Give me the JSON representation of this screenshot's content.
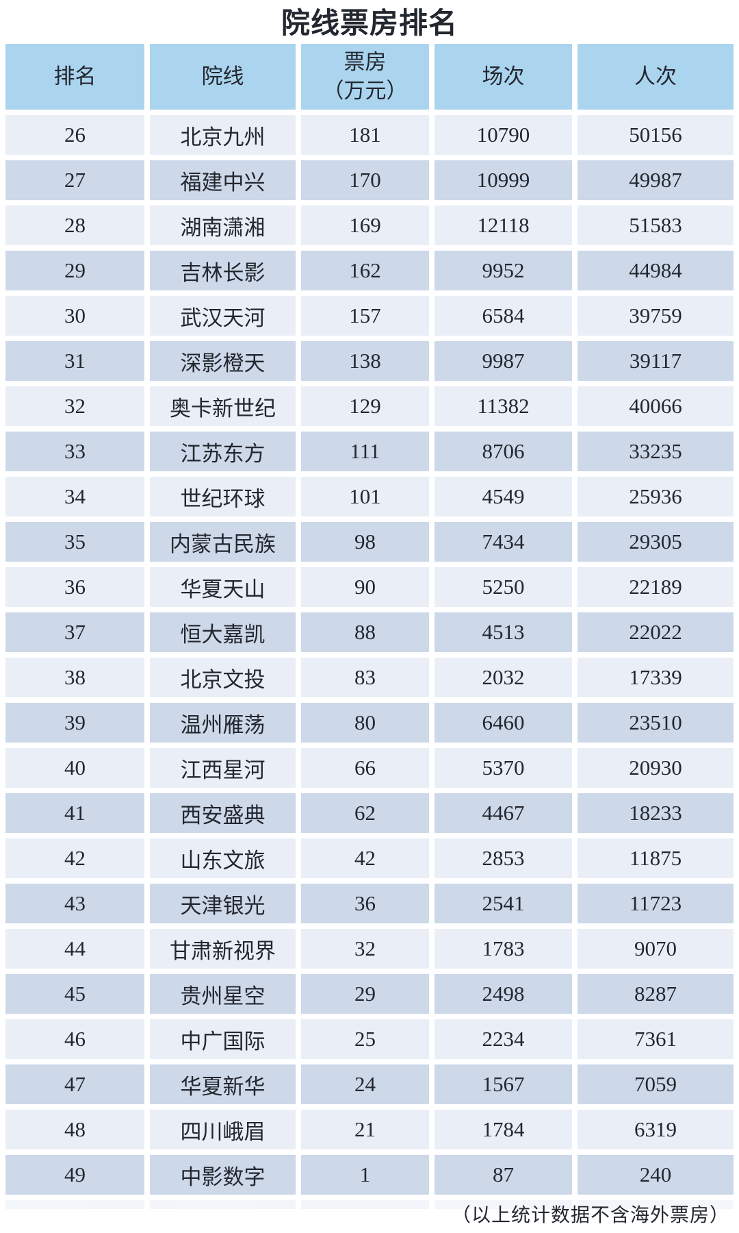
{
  "title": "院线票房排名",
  "chart_data": {
    "type": "table",
    "title": "院线票房排名",
    "columns": [
      "排名",
      "院线",
      "票房（万元）",
      "场次",
      "人次"
    ],
    "rows": [
      [
        26,
        "北京九州",
        181,
        10790,
        50156
      ],
      [
        27,
        "福建中兴",
        170,
        10999,
        49987
      ],
      [
        28,
        "湖南潇湘",
        169,
        12118,
        51583
      ],
      [
        29,
        "吉林长影",
        162,
        9952,
        44984
      ],
      [
        30,
        "武汉天河",
        157,
        6584,
        39759
      ],
      [
        31,
        "深影橙天",
        138,
        9987,
        39117
      ],
      [
        32,
        "奥卡新世纪",
        129,
        11382,
        40066
      ],
      [
        33,
        "江苏东方",
        111,
        8706,
        33235
      ],
      [
        34,
        "世纪环球",
        101,
        4549,
        25936
      ],
      [
        35,
        "内蒙古民族",
        98,
        7434,
        29305
      ],
      [
        36,
        "华夏天山",
        90,
        5250,
        22189
      ],
      [
        37,
        "恒大嘉凯",
        88,
        4513,
        22022
      ],
      [
        38,
        "北京文投",
        83,
        2032,
        17339
      ],
      [
        39,
        "温州雁荡",
        80,
        6460,
        23510
      ],
      [
        40,
        "江西星河",
        66,
        5370,
        20930
      ],
      [
        41,
        "西安盛典",
        62,
        4467,
        18233
      ],
      [
        42,
        "山东文旅",
        42,
        2853,
        11875
      ],
      [
        43,
        "天津银光",
        36,
        2541,
        11723
      ],
      [
        44,
        "甘肃新视界",
        32,
        1783,
        9070
      ],
      [
        45,
        "贵州星空",
        29,
        2498,
        8287
      ],
      [
        46,
        "中广国际",
        25,
        2234,
        7361
      ],
      [
        47,
        "华夏新华",
        24,
        1567,
        7059
      ],
      [
        48,
        "四川峨眉",
        21,
        1784,
        6319
      ],
      [
        49,
        "中影数字",
        1,
        87,
        240
      ]
    ]
  },
  "table": {
    "headers": [
      {
        "label": "排名",
        "sub": ""
      },
      {
        "label": "院线",
        "sub": ""
      },
      {
        "label": "票房",
        "sub": "（万元）"
      },
      {
        "label": "场次",
        "sub": ""
      },
      {
        "label": "人次",
        "sub": ""
      }
    ]
  },
  "footer_note": "（以上统计数据不含海外票房）",
  "colors": {
    "header_bg": "#abd4ef",
    "row_light": "#eaeef6",
    "row_dark": "#cdd8e9",
    "text": "#23272f",
    "background": "#ffffff"
  }
}
